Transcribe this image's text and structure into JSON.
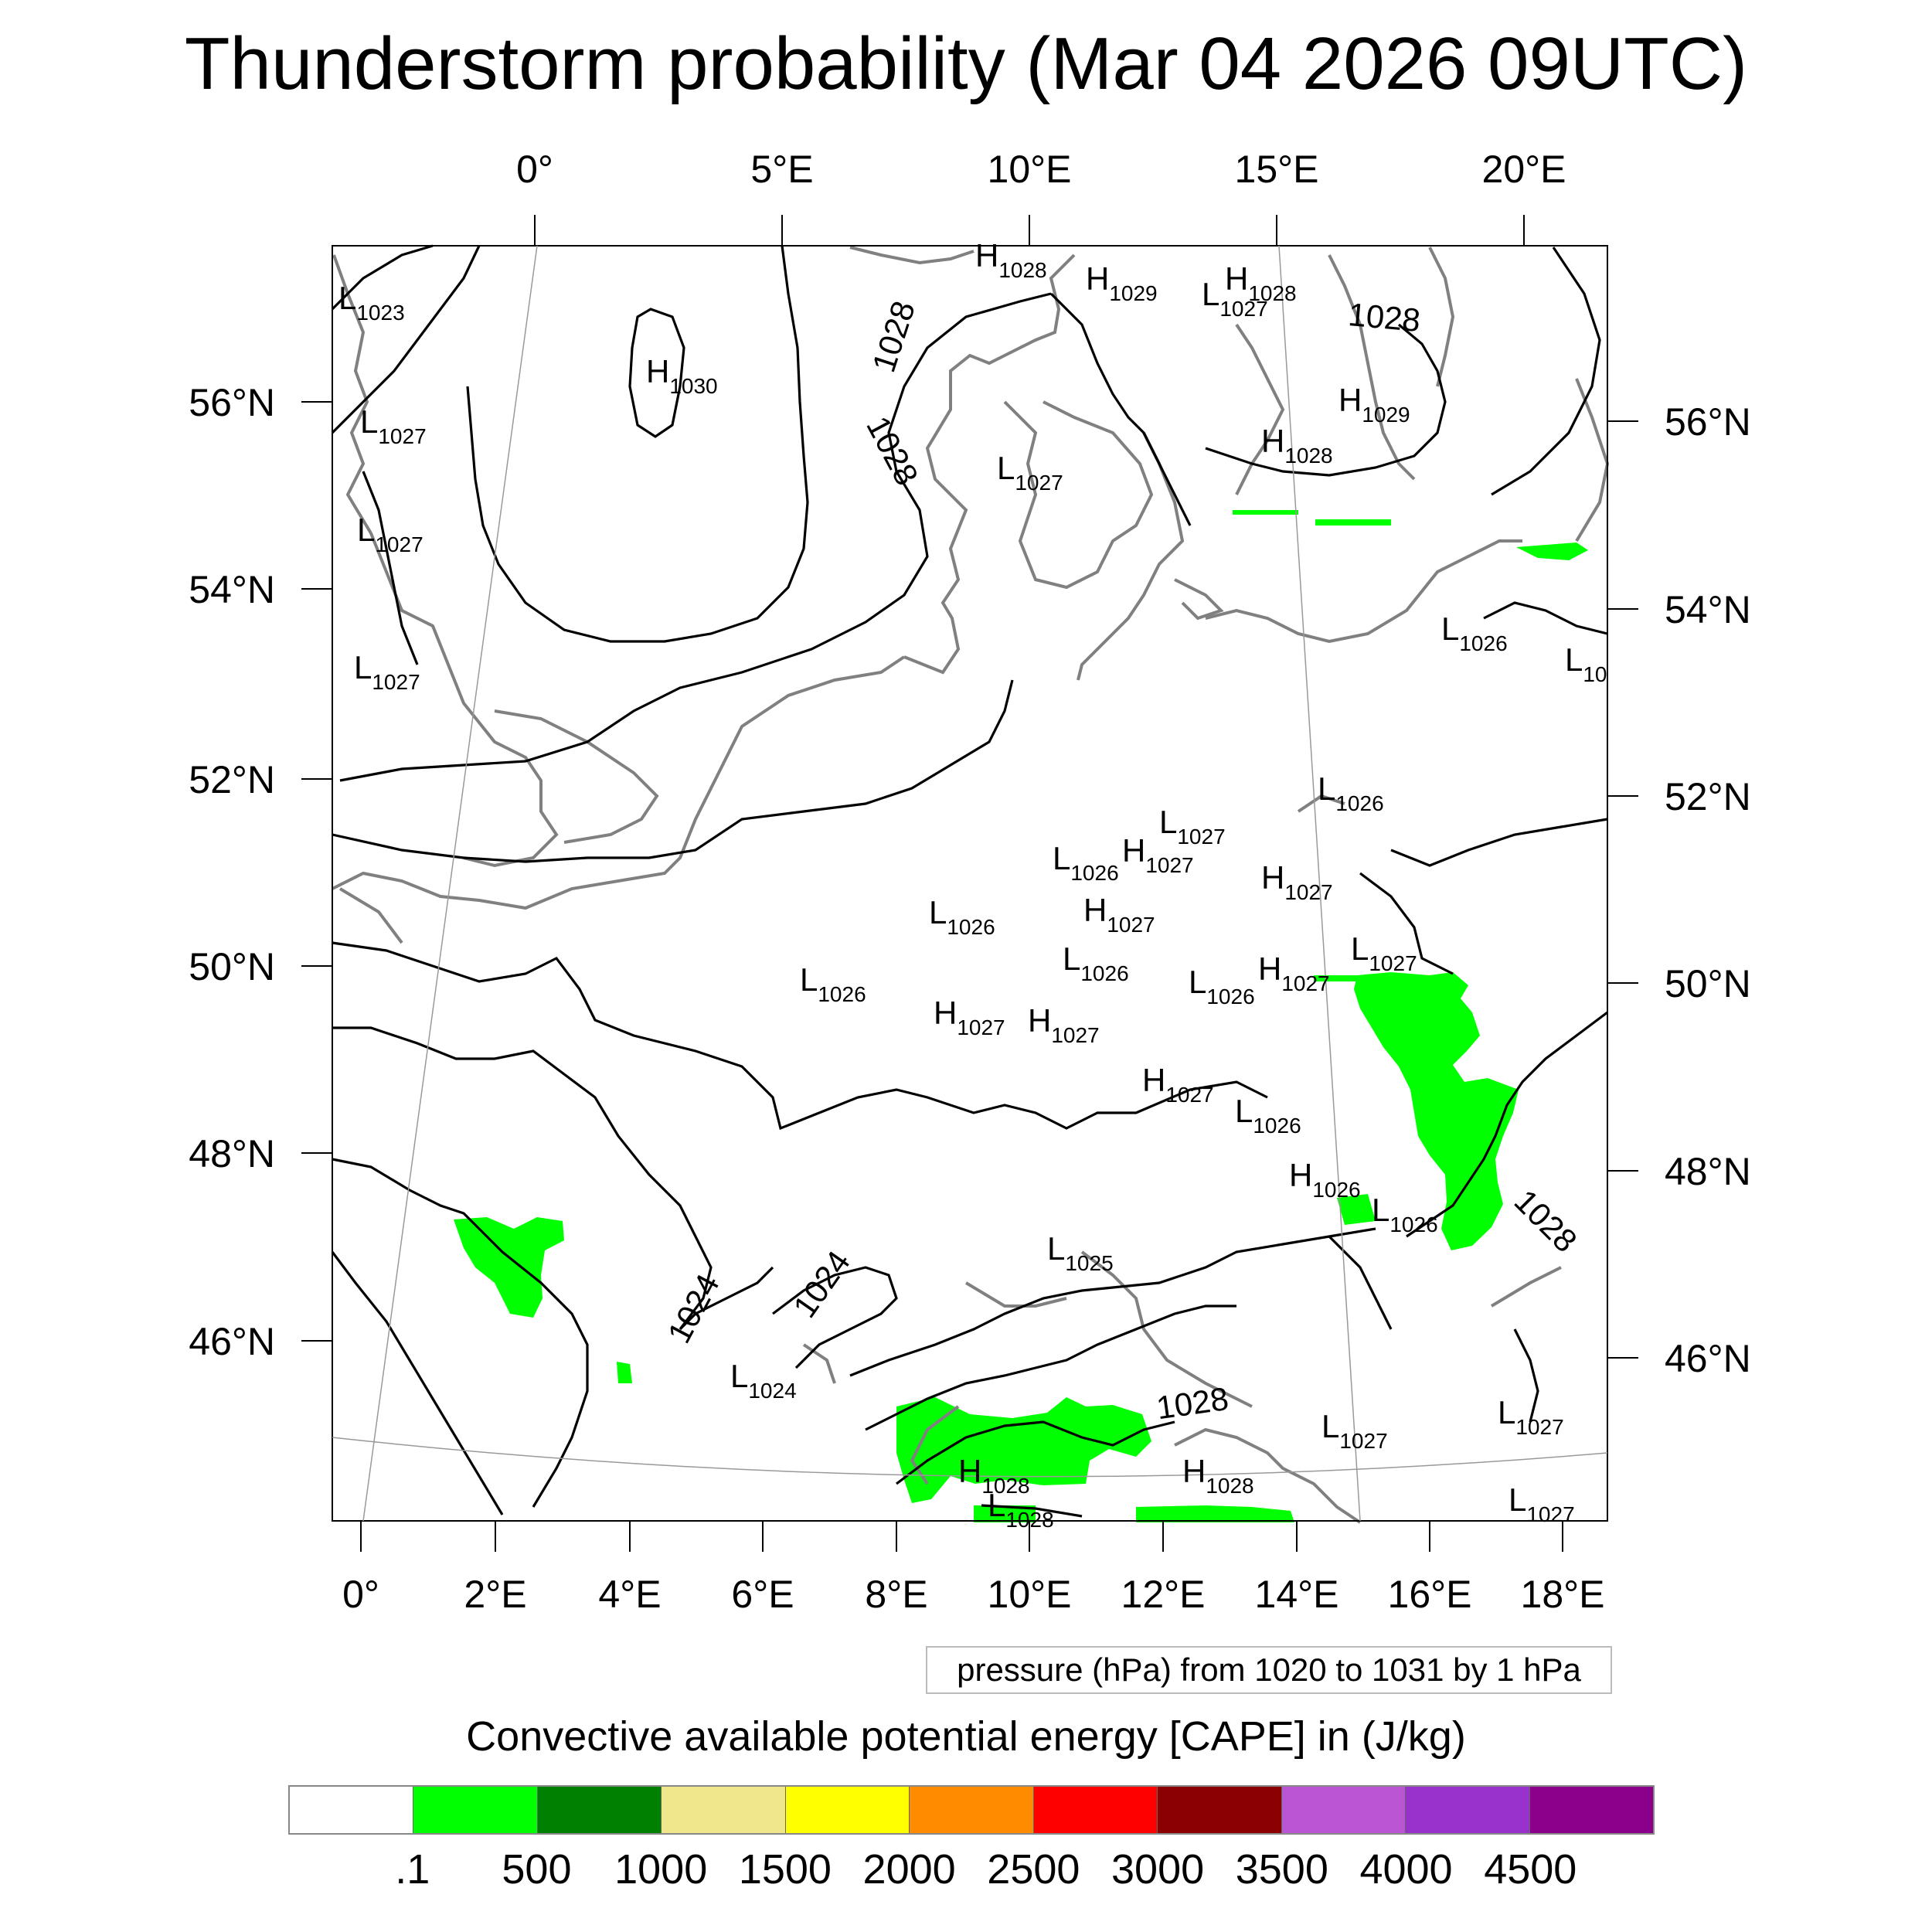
{
  "title": "Thunderstorm probability (Mar 04 2026 09UTC)",
  "pressure_note": "pressure (hPa) from 1020 to 1031 by 1 hPa",
  "cape_title": "Convective available potential energy [CAPE] in (J/kg)",
  "colorbar": {
    "colors": [
      "#ffffff",
      "#00ff00",
      "#008000",
      "#f0e68c",
      "#ffff00",
      "#ff8c00",
      "#ff0000",
      "#8b0000",
      "#ba55d3",
      "#9932cc",
      "#8b008b"
    ],
    "labels": [
      ".1",
      "500",
      "1000",
      "1500",
      "2000",
      "2500",
      "3000",
      "3500",
      "4000",
      "4500"
    ]
  },
  "axes": {
    "top_lon": [
      "0°",
      "5°E",
      "10°E",
      "15°E",
      "20°E"
    ],
    "bottom_lon": [
      "0°",
      "2°E",
      "4°E",
      "6°E",
      "8°E",
      "10°E",
      "12°E",
      "14°E",
      "16°E",
      "18°E"
    ],
    "left_lat": [
      "56°N",
      "54°N",
      "52°N",
      "50°N",
      "48°N",
      "46°N"
    ],
    "right_lat": [
      "56°N",
      "54°N",
      "52°N",
      "50°N",
      "48°N",
      "46°N"
    ]
  },
  "contour_labels": [
    "1028",
    "1028",
    "1028",
    "1028",
    "1028",
    "1024",
    "1024"
  ],
  "pressure_centers": [
    {
      "type": "H",
      "value": "1028"
    },
    {
      "type": "H",
      "value": "1029"
    },
    {
      "type": "H",
      "value": "1028"
    },
    {
      "type": "L",
      "value": "1027"
    },
    {
      "type": "L",
      "value": "1023"
    },
    {
      "type": "H",
      "value": "1030"
    },
    {
      "type": "L",
      "value": "1027"
    },
    {
      "type": "L",
      "value": "1027"
    },
    {
      "type": "L",
      "value": "1027"
    },
    {
      "type": "L",
      "value": "1027"
    },
    {
      "type": "H",
      "value": "1029"
    },
    {
      "type": "H",
      "value": "1028"
    },
    {
      "type": "L",
      "value": "1026"
    },
    {
      "type": "L",
      "value": "10"
    },
    {
      "type": "L",
      "value": "1026"
    },
    {
      "type": "L",
      "value": "1027"
    },
    {
      "type": "L",
      "value": "1026"
    },
    {
      "type": "H",
      "value": "1027"
    },
    {
      "type": "H",
      "value": "1027"
    },
    {
      "type": "L",
      "value": "1026"
    },
    {
      "type": "H",
      "value": "1027"
    },
    {
      "type": "L",
      "value": "1027"
    },
    {
      "type": "L",
      "value": "1026"
    },
    {
      "type": "L",
      "value": "1026"
    },
    {
      "type": "H",
      "value": "1027"
    },
    {
      "type": "L",
      "value": "1026"
    },
    {
      "type": "H",
      "value": "1027"
    },
    {
      "type": "H",
      "value": "1027"
    },
    {
      "type": "H",
      "value": "1027"
    },
    {
      "type": "L",
      "value": "1026"
    },
    {
      "type": "H",
      "value": "1026"
    },
    {
      "type": "L",
      "value": "1026"
    },
    {
      "type": "L",
      "value": "1025"
    },
    {
      "type": "L",
      "value": "1024"
    },
    {
      "type": "L",
      "value": "1027"
    },
    {
      "type": "L",
      "value": "1027"
    },
    {
      "type": "H",
      "value": "1028"
    },
    {
      "type": "H",
      "value": "1028"
    },
    {
      "type": "L",
      "value": "1028"
    },
    {
      "type": "L",
      "value": "1027"
    }
  ]
}
